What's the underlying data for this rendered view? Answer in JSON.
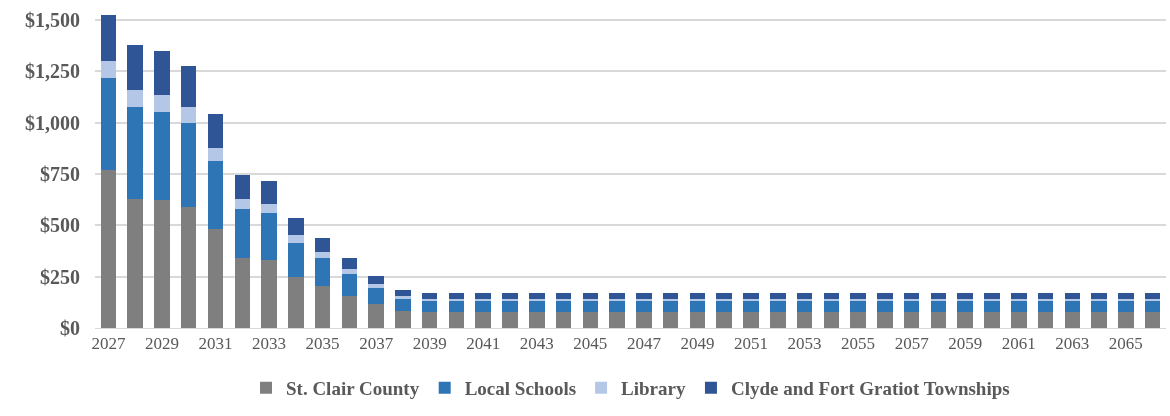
{
  "chart_data": {
    "type": "bar",
    "stacked": true,
    "categories": [
      "2027",
      null,
      "2029",
      null,
      "2031",
      null,
      "2033",
      null,
      "2035",
      null,
      "2037",
      null,
      "2039",
      null,
      "2041",
      null,
      "2043",
      null,
      "2045",
      null,
      "2047",
      null,
      "2049",
      null,
      "2051",
      null,
      "2053",
      null,
      "2055",
      null,
      "2057",
      null,
      "2059",
      null,
      "2061",
      null,
      "2063",
      null,
      "2065",
      null
    ],
    "series": [
      {
        "name": "St. Clair County",
        "color": "#7f7f7f",
        "values": [
          768,
          631,
          622,
          588,
          481,
          343,
          330,
          247,
          205,
          156,
          119,
          84,
          77,
          77,
          77,
          77,
          77,
          77,
          77,
          77,
          77,
          77,
          77,
          77,
          77,
          77,
          77,
          77,
          77,
          77,
          77,
          77,
          77,
          77,
          77,
          77,
          77,
          77,
          77,
          77
        ]
      },
      {
        "name": "Local Schools",
        "color": "#2e75b6",
        "values": [
          451,
          447,
          432,
          410,
          331,
          238,
          230,
          169,
          138,
          109,
          77,
          59,
          55,
          55,
          55,
          55,
          55,
          55,
          55,
          55,
          55,
          55,
          55,
          55,
          55,
          55,
          55,
          55,
          55,
          55,
          55,
          55,
          55,
          55,
          55,
          55,
          55,
          55,
          55,
          55
        ]
      },
      {
        "name": "Library",
        "color": "#b4c7e7",
        "values": [
          83,
          81,
          79,
          80,
          63,
          46,
          44,
          35,
          25,
          22,
          17,
          11,
          11,
          11,
          11,
          11,
          11,
          11,
          11,
          11,
          11,
          11,
          11,
          11,
          11,
          11,
          11,
          11,
          11,
          11,
          11,
          11,
          11,
          11,
          11,
          11,
          11,
          11,
          11,
          11
        ]
      },
      {
        "name": "Clyde and Fort Gratiot Townships",
        "color": "#2f5597",
        "values": [
          224,
          218,
          216,
          201,
          166,
          118,
          112,
          85,
          69,
          52,
          40,
          31,
          28,
          28,
          28,
          28,
          28,
          28,
          28,
          28,
          28,
          28,
          28,
          28,
          28,
          28,
          28,
          28,
          28,
          28,
          28,
          28,
          28,
          28,
          28,
          28,
          28,
          28,
          28,
          28
        ]
      }
    ],
    "ylim": [
      0,
      1530
    ],
    "yticks": [
      {
        "value": 0,
        "label": "$0"
      },
      {
        "value": 250,
        "label": "$250"
      },
      {
        "value": 500,
        "label": "$500"
      },
      {
        "value": 750,
        "label": "$750"
      },
      {
        "value": 1000,
        "label": "$1,000"
      },
      {
        "value": 1250,
        "label": "$1,250"
      },
      {
        "value": 1500,
        "label": "$1,500"
      }
    ],
    "grid": "y",
    "legend": "bottom"
  }
}
